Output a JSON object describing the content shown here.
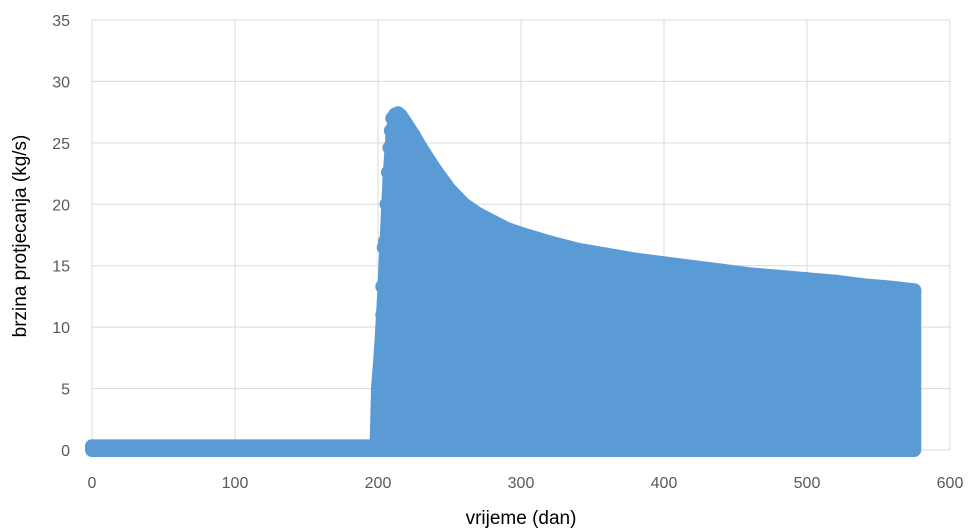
{
  "chart_data": {
    "type": "scatter",
    "title": "",
    "xlabel": "vrijeme (dan)",
    "ylabel": "brzina protjecanja (kg/s)",
    "xlim": [
      0,
      600
    ],
    "ylim": [
      0,
      35
    ],
    "xticks": [
      0,
      100,
      200,
      300,
      400,
      500,
      600
    ],
    "yticks": [
      0,
      5,
      10,
      15,
      20,
      25,
      30,
      35
    ],
    "grid": true,
    "legend": "none",
    "marker_color": "#5b9bd5",
    "series": [
      {
        "note": "dense oscillating samples; baseline near 0, peak envelope shown below",
        "envelope": {
          "x": [
            0,
            199,
            200,
            202,
            204,
            206,
            208,
            210,
            212,
            214,
            216,
            220,
            225,
            230,
            240,
            250,
            260,
            270,
            280,
            290,
            300,
            320,
            340,
            360,
            380,
            400,
            420,
            440,
            460,
            480,
            500,
            520,
            540,
            560,
            575
          ],
          "y": [
            0.3,
            0.3,
            5,
            8,
            12,
            17,
            22,
            25.5,
            27.3,
            27.4,
            27.2,
            26.5,
            25.6,
            24.6,
            22.8,
            21.2,
            20.0,
            19.2,
            18.6,
            18.0,
            17.6,
            16.9,
            16.3,
            15.9,
            15.5,
            15.2,
            14.9,
            14.6,
            14.3,
            14.1,
            13.9,
            13.7,
            13.4,
            13.2,
            13.0
          ]
        }
      }
    ]
  }
}
